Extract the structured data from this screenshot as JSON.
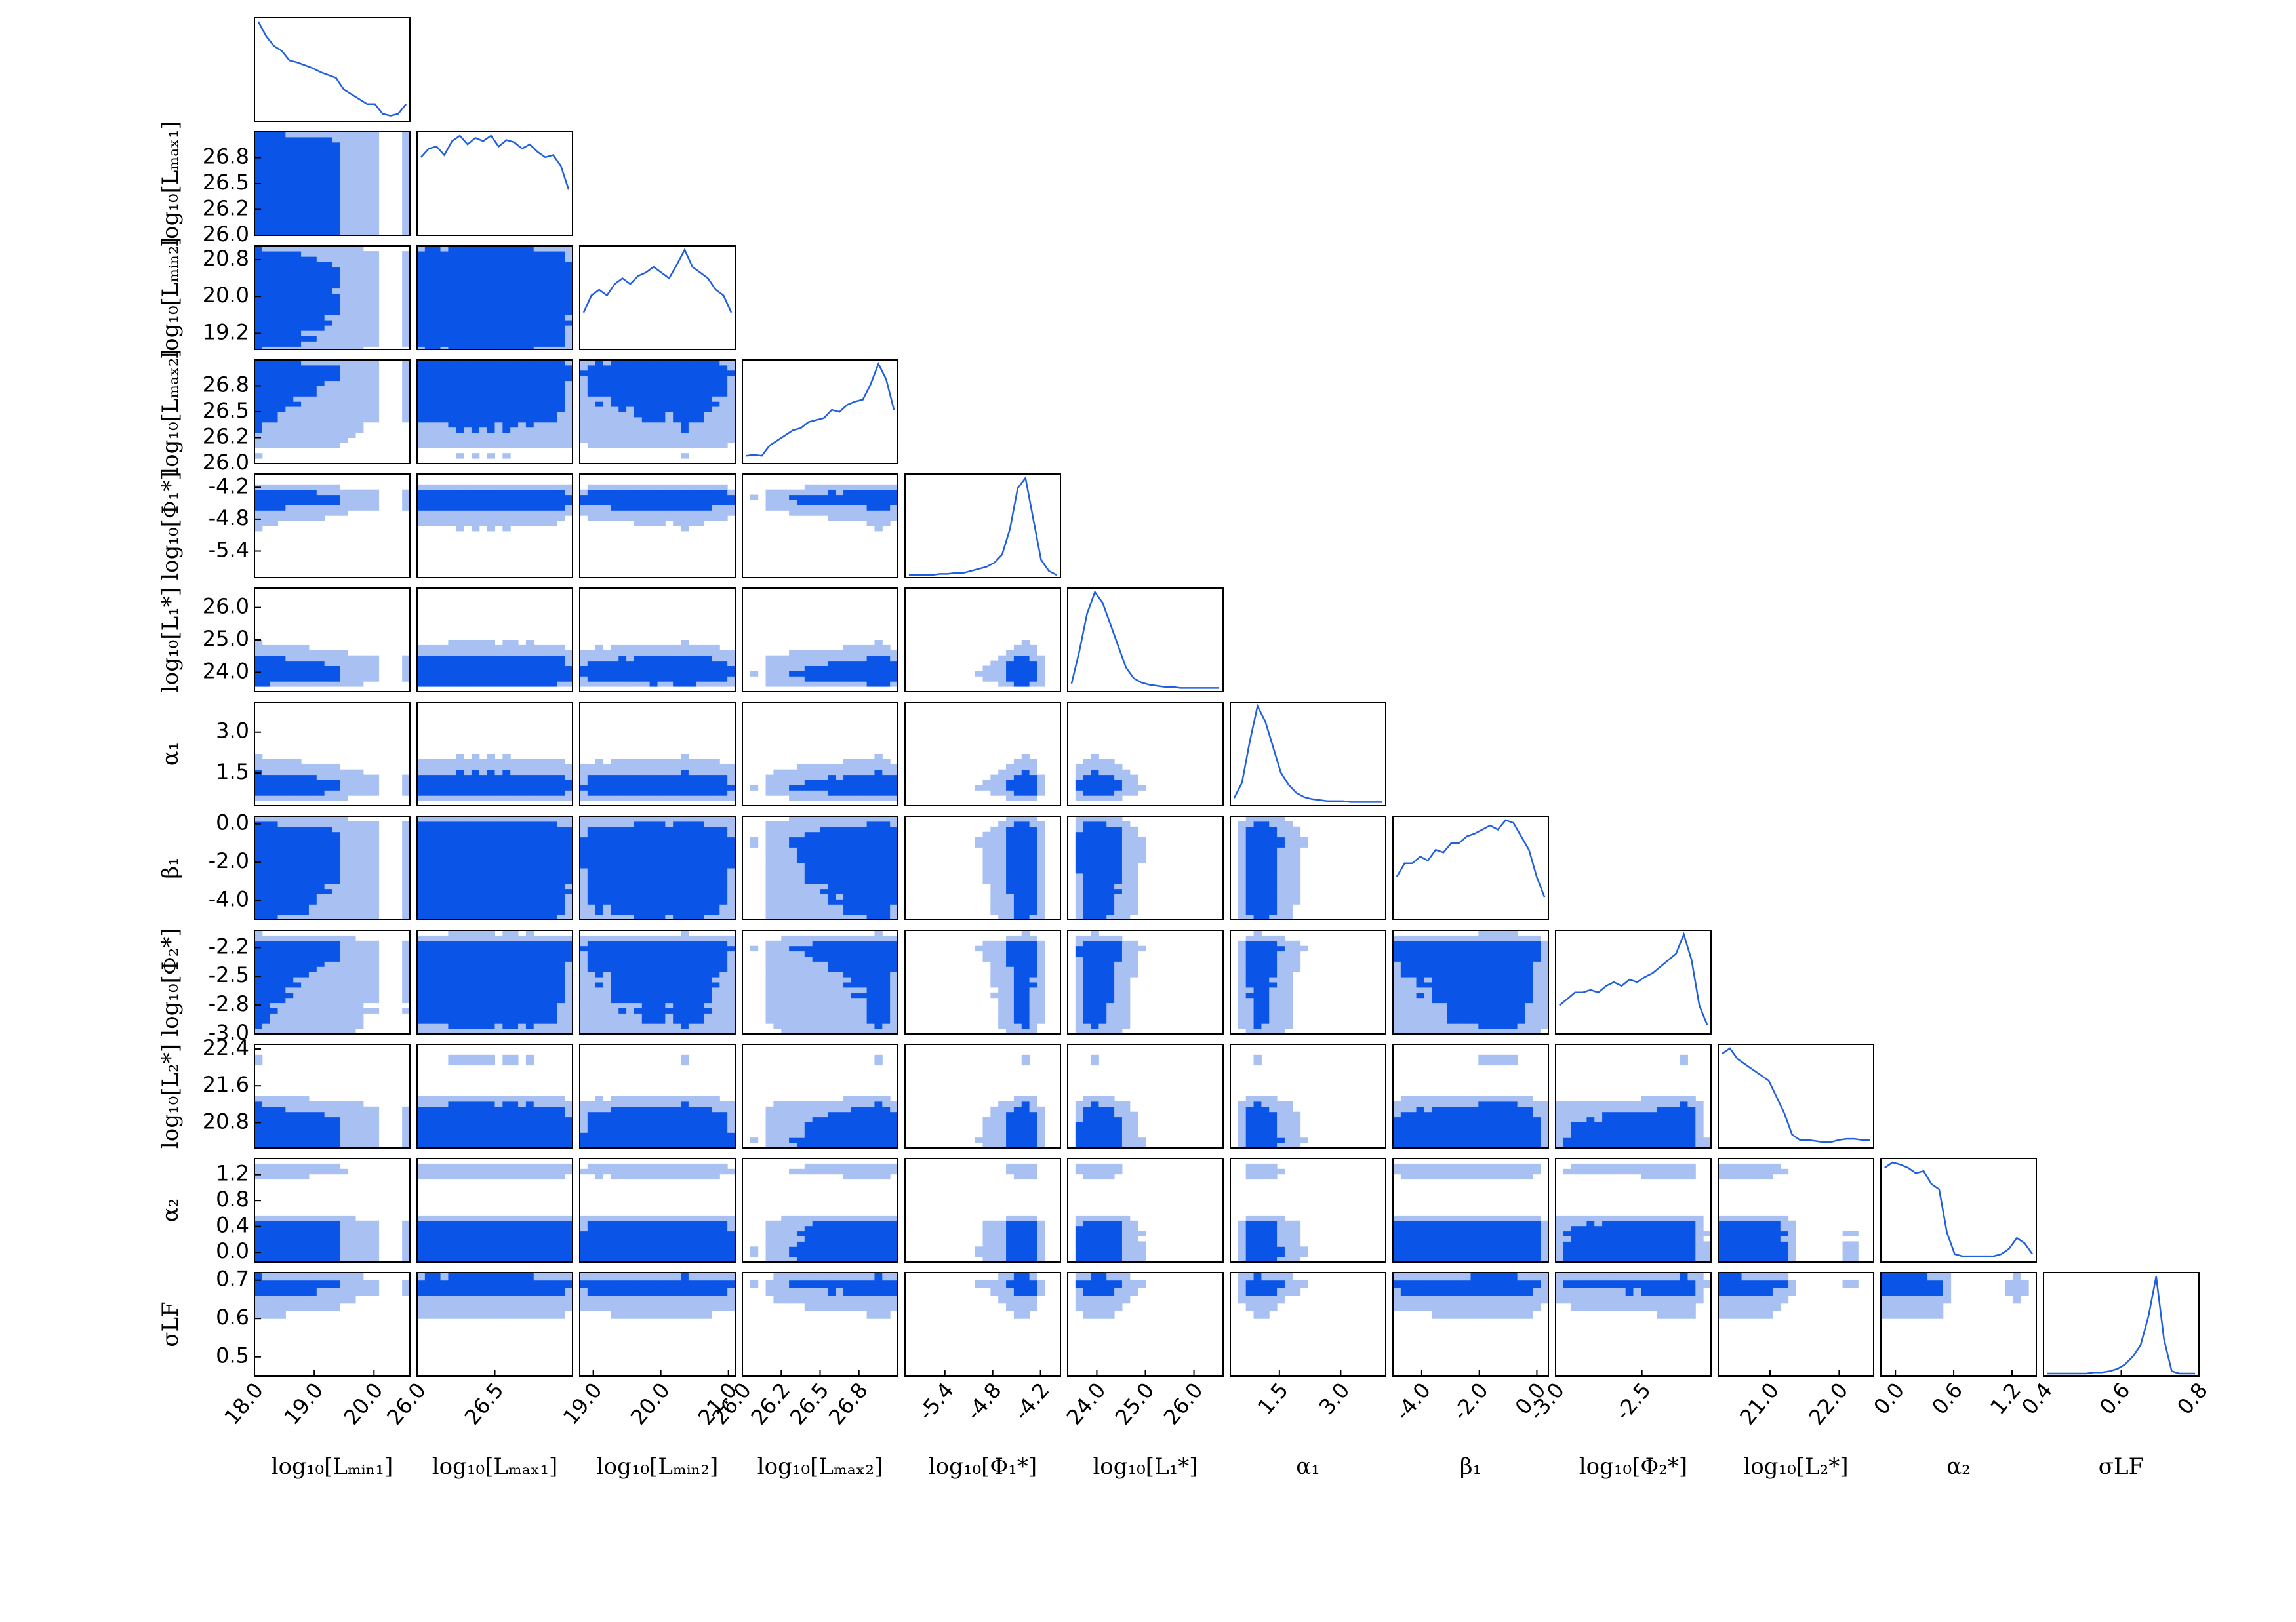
{
  "chart_data": {
    "type": "corner",
    "colors": {
      "line": "#1f5fe0",
      "dark": "#0a55e8",
      "light": "#a8c1f2"
    },
    "params": [
      {
        "label": "log₁₀[Lₘᵢₙ₁]",
        "xlim": [
          18,
          20.6
        ],
        "xticks": [
          {
            "value": 18,
            "label": "18.0"
          },
          {
            "value": 19,
            "label": "19.0"
          },
          {
            "value": 20,
            "label": "20.0"
          }
        ],
        "hist": [
          1.0,
          0.85,
          0.75,
          0.7,
          0.6,
          0.58,
          0.55,
          0.52,
          0.48,
          0.45,
          0.42,
          0.3,
          0.25,
          0.2,
          0.15,
          0.15,
          0.05,
          0.03,
          0.05,
          0.15
        ]
      },
      {
        "label": "log₁₀[Lₘₐₓ₁]",
        "xlim": [
          26,
          27
        ],
        "xticks": [
          {
            "value": 26,
            "label": "26.0"
          },
          26.5
        ],
        "ylim": [
          26,
          27
        ],
        "yticks": [
          {
            "value": 26,
            "label": "26.0"
          },
          {
            "value": 26.25,
            "label": "26.2"
          },
          26.5,
          {
            "value": 26.75,
            "label": "26.8"
          }
        ],
        "hist": [
          0.7,
          0.78,
          0.8,
          0.72,
          0.85,
          0.9,
          0.82,
          0.88,
          0.85,
          0.9,
          0.8,
          0.86,
          0.84,
          0.78,
          0.82,
          0.75,
          0.7,
          0.72,
          0.62,
          0.4
        ]
      },
      {
        "label": "log₁₀[Lₘᵢₙ₂]",
        "xlim": [
          18.8,
          21.1
        ],
        "xticks": [
          {
            "value": 19,
            "label": "19.0"
          },
          {
            "value": 20,
            "label": "20.0"
          },
          {
            "value": 21,
            "label": "21.0"
          }
        ],
        "ylim": [
          18.85,
          21.1
        ],
        "yticks": [
          19.2,
          {
            "value": 20,
            "label": "20.0"
          },
          20.8
        ],
        "hist": [
          0.3,
          0.45,
          0.5,
          0.45,
          0.55,
          0.6,
          0.55,
          0.62,
          0.65,
          0.7,
          0.65,
          0.6,
          0.72,
          0.85,
          0.7,
          0.65,
          0.6,
          0.5,
          0.45,
          0.3
        ]
      },
      {
        "label": "log₁₀[Lₘₐₓ₂]",
        "xlim": [
          26,
          27
        ],
        "xticks": [
          {
            "value": 26,
            "label": "26.0"
          },
          {
            "value": 26.25,
            "label": "26.2"
          },
          26.5,
          {
            "value": 26.75,
            "label": "26.8"
          }
        ],
        "ylim": [
          26,
          27
        ],
        "yticks": [
          {
            "value": 26,
            "label": "26.0"
          },
          {
            "value": 26.25,
            "label": "26.2"
          },
          26.5,
          {
            "value": 26.75,
            "label": "26.8"
          }
        ],
        "hist": [
          0.05,
          0.06,
          0.05,
          0.15,
          0.2,
          0.25,
          0.3,
          0.32,
          0.38,
          0.4,
          0.42,
          0.5,
          0.48,
          0.55,
          0.58,
          0.6,
          0.75,
          0.95,
          0.8,
          0.5
        ]
      },
      {
        "label": "log₁₀[Φ₁*]",
        "xlim": [
          -5.9,
          -3.95
        ],
        "xticks": [
          -5.4,
          -4.8,
          -4.2
        ],
        "ylim": [
          -5.9,
          -3.95
        ],
        "yticks": [
          -5.4,
          -4.8,
          -4.2
        ],
        "hist": [
          0,
          0,
          0,
          0,
          0.01,
          0.01,
          0.02,
          0.02,
          0.04,
          0.06,
          0.08,
          0.12,
          0.2,
          0.45,
          0.85,
          0.95,
          0.55,
          0.15,
          0.04,
          0
        ]
      },
      {
        "label": "log₁₀[L₁*]",
        "xlim": [
          23.4,
          26.6
        ],
        "xticks": [
          {
            "value": 24,
            "label": "24.0"
          },
          {
            "value": 25,
            "label": "25.0"
          },
          {
            "value": 26,
            "label": "26.0"
          }
        ],
        "ylim": [
          23.4,
          26.6
        ],
        "yticks": [
          {
            "value": 24,
            "label": "24.0"
          },
          {
            "value": 25,
            "label": "25.0"
          },
          {
            "value": 26,
            "label": "26.0"
          }
        ],
        "hist": [
          0.05,
          0.35,
          0.7,
          0.9,
          0.8,
          0.6,
          0.4,
          0.2,
          0.1,
          0.06,
          0.04,
          0.03,
          0.02,
          0.02,
          0.01,
          0.01,
          0.01,
          0.01,
          0.01,
          0.01
        ]
      },
      {
        "label": "α₁",
        "xlim": [
          0.3,
          4.1
        ],
        "xticks": [
          1.5,
          {
            "value": 3,
            "label": "3.0"
          }
        ],
        "ylim": [
          0.3,
          4.1
        ],
        "yticks": [
          1.5,
          {
            "value": 3,
            "label": "3.0"
          }
        ],
        "hist": [
          0.05,
          0.2,
          0.6,
          0.95,
          0.8,
          0.55,
          0.3,
          0.18,
          0.1,
          0.06,
          0.04,
          0.03,
          0.02,
          0.02,
          0.02,
          0.01,
          0.01,
          0.01,
          0.01,
          0.01
        ]
      },
      {
        "label": "β₁",
        "xlim": [
          -5.0,
          0.4
        ],
        "xticks": [
          {
            "value": -4,
            "label": "-4.0"
          },
          {
            "value": -2,
            "label": "-2.0"
          },
          {
            "value": 0,
            "label": "0.0"
          }
        ],
        "ylim": [
          -5.0,
          0.4
        ],
        "yticks": [
          {
            "value": -4,
            "label": "-4.0"
          },
          {
            "value": -2,
            "label": "-2.0"
          },
          {
            "value": 0,
            "label": "0.0"
          }
        ],
        "hist": [
          0.3,
          0.4,
          0.4,
          0.45,
          0.42,
          0.5,
          0.48,
          0.55,
          0.55,
          0.6,
          0.62,
          0.65,
          0.68,
          0.65,
          0.72,
          0.7,
          0.6,
          0.5,
          0.3,
          0.15
        ]
      },
      {
        "label": "log₁₀[Φ₂*]",
        "xlim": [
          -3.0,
          -2.1
        ],
        "xticks": [
          {
            "value": -3,
            "label": "-3.0"
          },
          -2.5
        ],
        "ylim": [
          -3.0,
          -2.1
        ],
        "yticks": [
          {
            "value": -2.25,
            "label": "-2.2"
          },
          -2.5,
          {
            "value": -2.75,
            "label": "-2.8"
          },
          {
            "value": -3,
            "label": "-3.0"
          }
        ],
        "hist": [
          0.2,
          0.25,
          0.3,
          0.3,
          0.32,
          0.3,
          0.35,
          0.38,
          0.35,
          0.4,
          0.38,
          0.42,
          0.45,
          0.5,
          0.55,
          0.6,
          0.75,
          0.55,
          0.2,
          0.05
        ]
      },
      {
        "label": "log₁₀[L₂*]",
        "xlim": [
          20.25,
          22.5
        ],
        "xticks": [
          {
            "value": 21,
            "label": "21.0"
          },
          {
            "value": 22,
            "label": "22.0"
          }
        ],
        "ylim": [
          20.25,
          22.5
        ],
        "yticks": [
          20.8,
          21.6,
          22.4
        ],
        "hist": [
          0.85,
          0.9,
          0.8,
          0.75,
          0.7,
          0.65,
          0.6,
          0.45,
          0.3,
          0.1,
          0.05,
          0.05,
          0.04,
          0.03,
          0.03,
          0.05,
          0.06,
          0.06,
          0.05,
          0.05
        ]
      },
      {
        "label": "α₂",
        "xlim": [
          -0.15,
          1.45
        ],
        "xticks": [
          {
            "value": 0,
            "label": "0.0"
          },
          0.6,
          1.2
        ],
        "ylim": [
          -0.15,
          1.45
        ],
        "yticks": [
          {
            "value": 0,
            "label": "0.0"
          },
          0.4,
          0.8,
          1.2
        ],
        "hist": [
          0.85,
          0.9,
          0.88,
          0.85,
          0.8,
          0.82,
          0.7,
          0.65,
          0.25,
          0.05,
          0.03,
          0.03,
          0.03,
          0.03,
          0.03,
          0.05,
          0.1,
          0.2,
          0.15,
          0.05
        ]
      },
      {
        "label": "σLF",
        "xlim": [
          0.4,
          0.8
        ],
        "xticks": [
          0.4,
          0.6,
          0.8
        ],
        "ylim": [
          0.45,
          0.72
        ],
        "yticks": [
          0.5,
          0.6,
          0.7
        ],
        "hist": [
          0,
          0,
          0,
          0,
          0,
          0,
          0.01,
          0.01,
          0.02,
          0.04,
          0.08,
          0.15,
          0.25,
          0.5,
          0.85,
          0.3,
          0.02,
          0,
          0,
          0
        ]
      }
    ]
  }
}
